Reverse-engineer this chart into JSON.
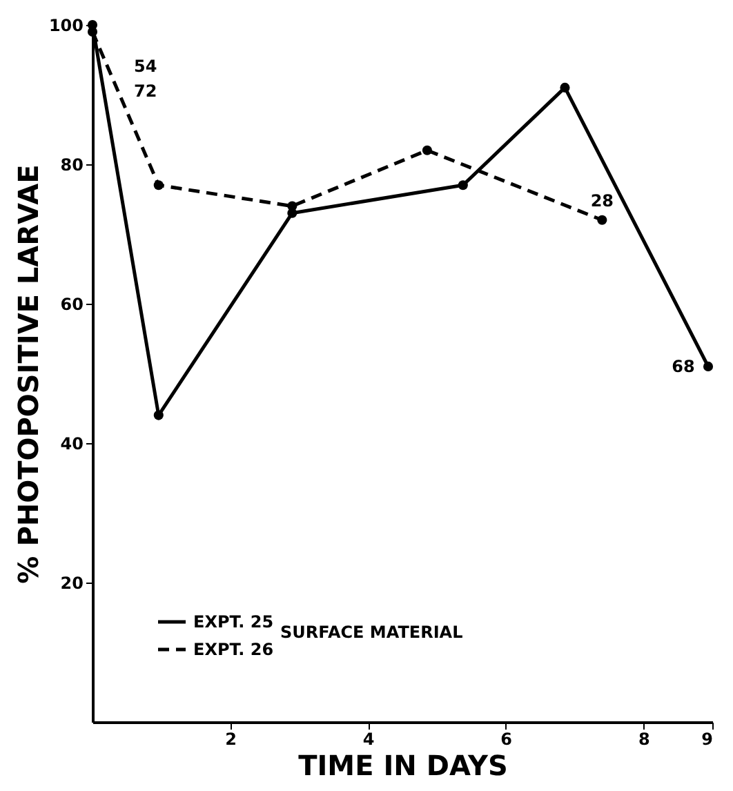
{
  "chart_data": {
    "type": "line",
    "xlabel": "TIME IN DAYS",
    "ylabel": "% PHOTOPOSITIVE LARVAE",
    "legend_title": "SURFACE MATERIAL",
    "series": [
      {
        "name": "EXPT. 25",
        "color": "#000000",
        "line_style": "solid",
        "x": [
          0,
          0.96,
          2.9,
          5.38,
          6.86,
          8.94
        ],
        "values": [
          100,
          44,
          73,
          77,
          91,
          51
        ]
      },
      {
        "name": "EXPT. 26",
        "color": "#000000",
        "line_style": "dashed",
        "x": [
          0,
          0.96,
          2.9,
          4.86,
          7.4
        ],
        "values": [
          99,
          77,
          74,
          82,
          72
        ]
      }
    ],
    "annotations": [
      "54",
      "72",
      {
        "text": "28",
        "x": 7.4,
        "y": 72
      },
      {
        "text": "68",
        "x": 8.94,
        "y": 51
      }
    ],
    "xlim": [
      0,
      9
    ],
    "xticks": [
      2,
      4,
      6,
      8,
      9
    ],
    "ylim": [
      0,
      100
    ],
    "yticks": [
      20,
      40,
      60,
      80,
      100
    ],
    "grid": false,
    "legend": "bottom left",
    "marker": "circle"
  }
}
